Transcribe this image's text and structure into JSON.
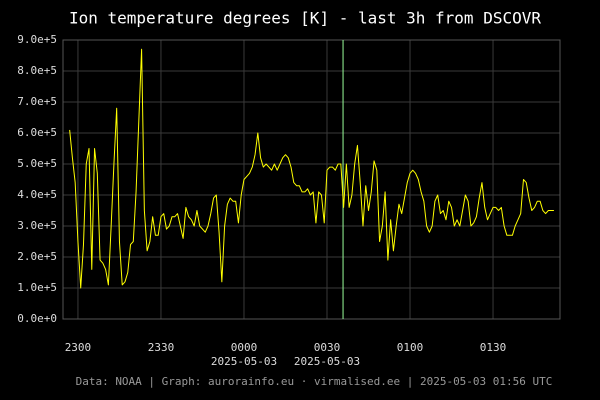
{
  "chart_data": {
    "type": "line",
    "title": "Ion temperature degrees [K] - last 3h from DSCOVR",
    "footer": "Data: NOAA | Graph: aurorainfo.eu · virmalised.ee | 2025-05-03 01:56 UTC",
    "x": [
      -3,
      -2,
      -1,
      0,
      1,
      2,
      3,
      4,
      5,
      6,
      7,
      8,
      9,
      10,
      11,
      12,
      13,
      14,
      15,
      16,
      17,
      18,
      19,
      20,
      21,
      22,
      23,
      24,
      25,
      26,
      27,
      28,
      29,
      30,
      31,
      32,
      33,
      34,
      35,
      36,
      37,
      38,
      39,
      40,
      41,
      42,
      43,
      44,
      45,
      46,
      47,
      48,
      49,
      50,
      51,
      52,
      53,
      54,
      55,
      56,
      57,
      58,
      59,
      60,
      61,
      62,
      63,
      64,
      65,
      66,
      67,
      68,
      69,
      70,
      71,
      72,
      73,
      74,
      75,
      76,
      77,
      78,
      79,
      80,
      81,
      82,
      83,
      84,
      85,
      86,
      87,
      88,
      89,
      90,
      91,
      92,
      93,
      94,
      95,
      96,
      97,
      98,
      99,
      100,
      101,
      102,
      103,
      104,
      105,
      106,
      107,
      108,
      109,
      110,
      111,
      112,
      113,
      114,
      115,
      116,
      117,
      118,
      119,
      120,
      121,
      122,
      123,
      124,
      125,
      126,
      127,
      128,
      129,
      130,
      131,
      132,
      133,
      134,
      135,
      136,
      137,
      138,
      139,
      140,
      141,
      142,
      143,
      144,
      145,
      146,
      147,
      148,
      149,
      150,
      151,
      152,
      153,
      154,
      155,
      156,
      157,
      158,
      159,
      160,
      161,
      162,
      163,
      164,
      165,
      166,
      167,
      168,
      169,
      170,
      171,
      172
    ],
    "values": [
      610000,
      520000,
      440000,
      250000,
      100000,
      240000,
      500000,
      550000,
      160000,
      550000,
      470000,
      190000,
      180000,
      160000,
      110000,
      300000,
      500000,
      680000,
      250000,
      110000,
      120000,
      150000,
      240000,
      250000,
      410000,
      640000,
      870000,
      350000,
      220000,
      250000,
      330000,
      270000,
      270000,
      330000,
      340000,
      290000,
      300000,
      330000,
      330000,
      340000,
      300000,
      260000,
      360000,
      330000,
      320000,
      300000,
      350000,
      300000,
      290000,
      280000,
      300000,
      340000,
      390000,
      400000,
      280000,
      120000,
      300000,
      370000,
      390000,
      380000,
      380000,
      310000,
      400000,
      450000,
      460000,
      470000,
      490000,
      530000,
      600000,
      520000,
      490000,
      500000,
      490000,
      480000,
      500000,
      480000,
      500000,
      520000,
      530000,
      520000,
      490000,
      440000,
      430000,
      430000,
      410000,
      410000,
      420000,
      400000,
      410000,
      310000,
      410000,
      400000,
      310000,
      480000,
      490000,
      490000,
      480000,
      500000,
      500000,
      360000,
      500000,
      360000,
      400000,
      500000,
      560000,
      440000,
      300000,
      430000,
      350000,
      410000,
      510000,
      480000,
      250000,
      300000,
      410000,
      190000,
      320000,
      220000,
      300000,
      370000,
      340000,
      390000,
      440000,
      470000,
      480000,
      470000,
      450000,
      410000,
      380000,
      300000,
      280000,
      300000,
      380000,
      400000,
      340000,
      350000,
      320000,
      380000,
      360000,
      300000,
      320000,
      300000,
      350000,
      400000,
      380000,
      300000,
      310000,
      330000,
      390000,
      440000,
      360000,
      320000,
      340000,
      360000,
      360000,
      350000,
      360000,
      300000,
      270000,
      270000,
      270000,
      300000,
      320000,
      340000,
      450000,
      440000,
      390000,
      350000,
      360000,
      380000,
      380000,
      350000,
      340000,
      350000,
      350000,
      350000
    ],
    "color": "#ffff00",
    "xlim": [
      -5.4,
      174.2
    ],
    "ylim": [
      0,
      900000
    ],
    "xticks": [
      {
        "value": 0,
        "label": "2300"
      },
      {
        "value": 30,
        "label": "2330"
      },
      {
        "value": 60,
        "label": "0000"
      },
      {
        "value": 90,
        "label": "0030"
      },
      {
        "value": 120,
        "label": "0100"
      },
      {
        "value": 150,
        "label": "0130"
      }
    ],
    "x_date_labels": [
      {
        "value": 60,
        "label": "2025-05-03"
      },
      {
        "value": 90,
        "label": "2025-05-03"
      }
    ],
    "yticks": [
      {
        "value": 0,
        "label": "0.0e+0"
      },
      {
        "value": 100000,
        "label": "1.0e+5"
      },
      {
        "value": 200000,
        "label": "2.0e+5"
      },
      {
        "value": 300000,
        "label": "3.0e+5"
      },
      {
        "value": 400000,
        "label": "4.0e+5"
      },
      {
        "value": 500000,
        "label": "5.0e+5"
      },
      {
        "value": 600000,
        "label": "6.0e+5"
      },
      {
        "value": 700000,
        "label": "7.0e+5"
      },
      {
        "value": 800000,
        "label": "8.0e+5"
      },
      {
        "value": 900000,
        "label": "9.0e+5"
      }
    ],
    "vline": {
      "x": 95.8,
      "color": "#99ff99"
    },
    "grid": true
  }
}
